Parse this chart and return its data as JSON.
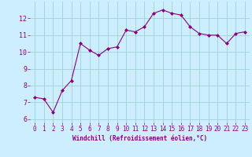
{
  "x": [
    0,
    1,
    2,
    3,
    4,
    5,
    6,
    7,
    8,
    9,
    10,
    11,
    12,
    13,
    14,
    15,
    16,
    17,
    18,
    19,
    20,
    21,
    22,
    23
  ],
  "y": [
    7.3,
    7.2,
    6.4,
    7.7,
    8.3,
    10.5,
    10.1,
    9.8,
    10.2,
    10.3,
    11.3,
    11.2,
    11.5,
    12.3,
    12.5,
    12.3,
    12.2,
    11.5,
    11.1,
    11.0,
    11.0,
    10.5,
    11.1,
    11.2
  ],
  "line_color": "#880088",
  "marker_color": "#880088",
  "bg_color": "#cceeff",
  "grid_color": "#99cccc",
  "xlabel": "Windchill (Refroidissement éolien,°C)",
  "xlabel_color": "#880088",
  "xtick_color": "#880088",
  "ytick_color": "#880088",
  "xlim": [
    -0.5,
    23.5
  ],
  "ylim": [
    5.8,
    13.0
  ],
  "yticks": [
    6,
    7,
    8,
    9,
    10,
    11,
    12
  ],
  "xticks": [
    0,
    1,
    2,
    3,
    4,
    5,
    6,
    7,
    8,
    9,
    10,
    11,
    12,
    13,
    14,
    15,
    16,
    17,
    18,
    19,
    20,
    21,
    22,
    23
  ],
  "marker": "D",
  "markersize": 2.0,
  "linewidth": 0.8,
  "tick_fontsize": 5.5,
  "xlabel_fontsize": 5.5,
  "ytick_fontsize": 6.0
}
